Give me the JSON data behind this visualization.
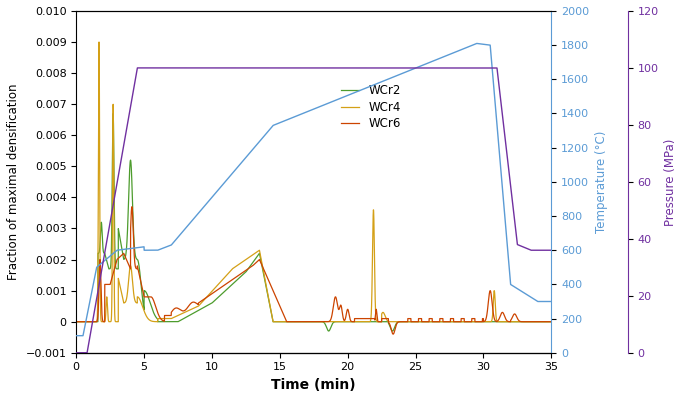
{
  "title": "",
  "xlabel": "Time (min)",
  "ylabel_left": "Fraction of maximal densification",
  "ylabel_right_temp": "Temperature (°C)",
  "ylabel_right_press": "Pressure (MPa)",
  "xlim": [
    0,
    35
  ],
  "ylim_left": [
    -0.001,
    0.01
  ],
  "ylim_temp": [
    0,
    2000
  ],
  "ylim_press": [
    0,
    120
  ],
  "colors": {
    "WCr2": "#4d9c2d",
    "WCr4": "#d4a017",
    "WCr6": "#cc4400",
    "temperature": "#5b9bd5",
    "pressure": "#7030a0"
  },
  "legend_labels": [
    "WCr2",
    "WCr4",
    "WCr6"
  ],
  "xticks": [
    0,
    5,
    10,
    15,
    20,
    25,
    30,
    35
  ],
  "yticks_left": [
    -0.001,
    0,
    0.001,
    0.002,
    0.003,
    0.004,
    0.005,
    0.006,
    0.007,
    0.008,
    0.009,
    0.01
  ],
  "yticks_temp": [
    0,
    200,
    400,
    600,
    800,
    1000,
    1200,
    1400,
    1600,
    1800,
    2000
  ],
  "yticks_press": [
    0,
    20,
    40,
    60,
    80,
    100,
    120
  ]
}
